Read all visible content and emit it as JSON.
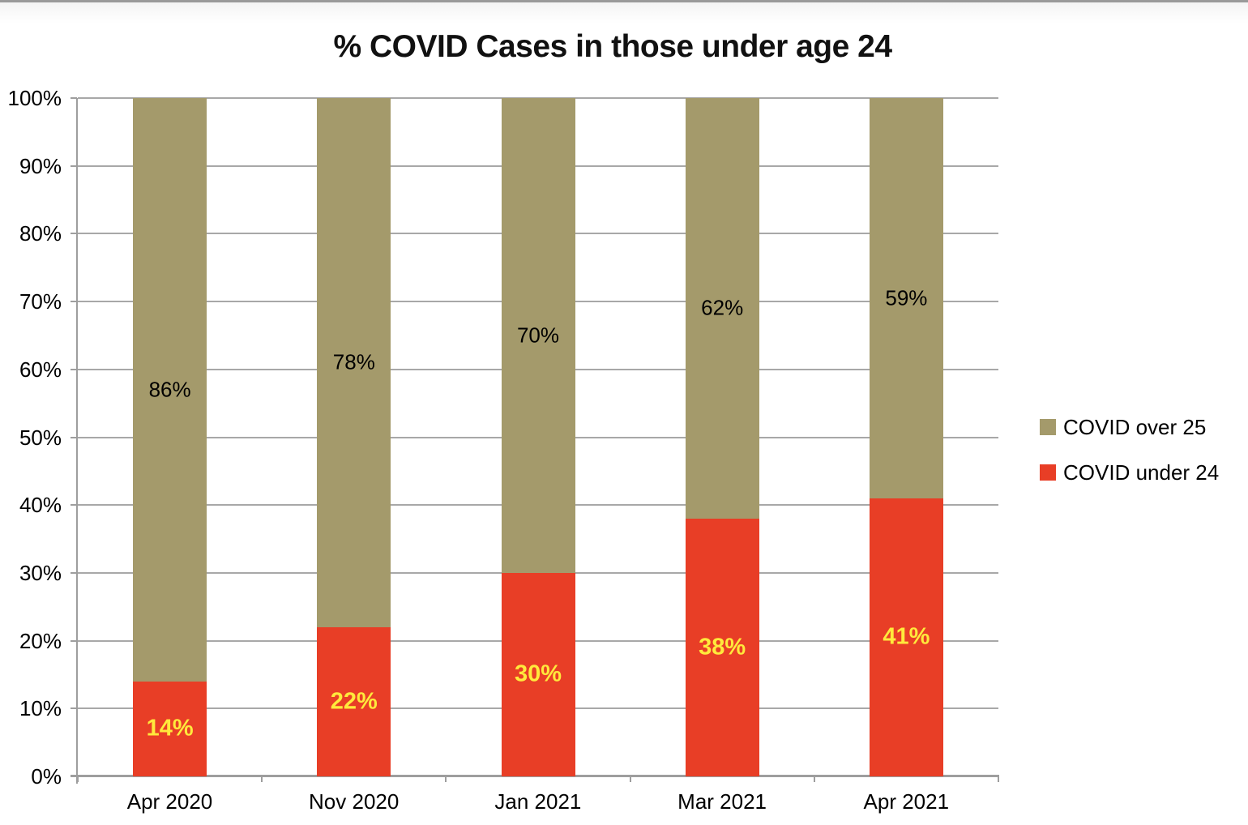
{
  "window": {
    "top_border_color": "#9a9a9a"
  },
  "chart_data": {
    "type": "bar",
    "stacked": true,
    "title": "% COVID Cases in those under age 24",
    "xlabel": "",
    "ylabel": "",
    "categories": [
      "Apr 2020",
      "Nov 2020",
      "Jan 2021",
      "Mar 2021",
      "Apr 2021"
    ],
    "series": [
      {
        "name": "COVID under 24",
        "color": "#e83e26",
        "label_color": "#ffe93c",
        "values": [
          14,
          22,
          30,
          38,
          41
        ]
      },
      {
        "name": "COVID over 25",
        "color": "#a49a6b",
        "label_color": "#000000",
        "values": [
          86,
          78,
          70,
          62,
          59
        ]
      }
    ],
    "segment_labels": {
      "under_24": [
        "14%",
        "22%",
        "30%",
        "38%",
        "41%"
      ],
      "over_25": [
        "86%",
        "78%",
        "70%",
        "62%",
        "59%"
      ]
    },
    "ylim": [
      0,
      100
    ],
    "ytick_step": 10,
    "ytick_labels": [
      "0%",
      "10%",
      "20%",
      "30%",
      "40%",
      "50%",
      "60%",
      "70%",
      "80%",
      "90%",
      "100%"
    ],
    "grid": true,
    "gridline_color": "#a8a8a8",
    "axis_color": "#9e9e9e",
    "legend_position": "right",
    "legend": [
      {
        "label": "COVID over 25",
        "color": "#a49a6b"
      },
      {
        "label": "COVID under 24",
        "color": "#e83e26"
      }
    ]
  }
}
